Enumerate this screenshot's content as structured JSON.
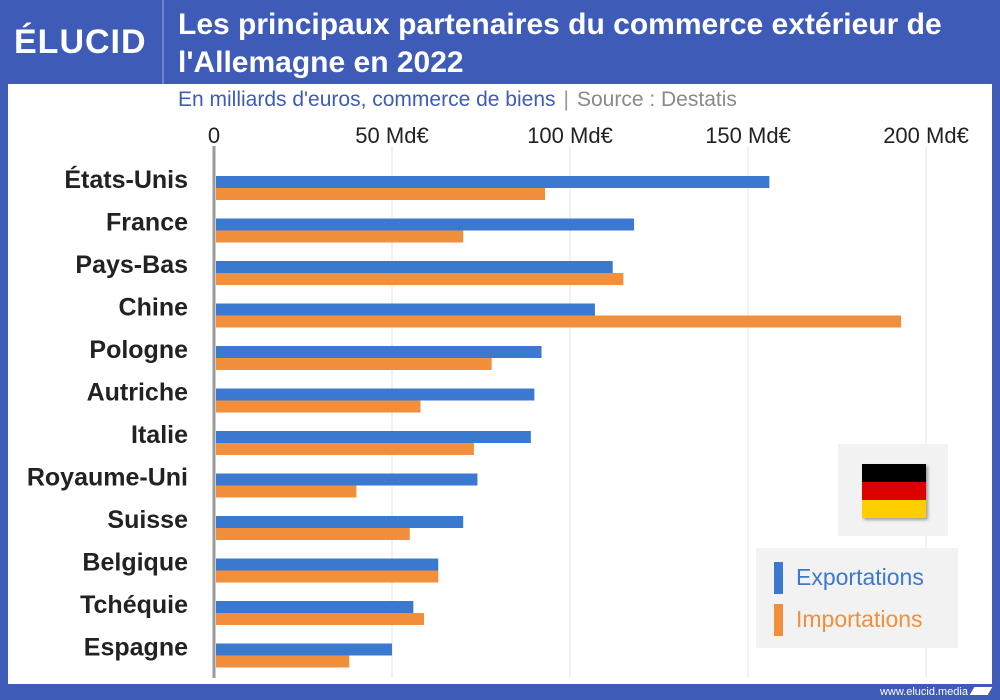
{
  "brand": {
    "logo_text": "ÉLUCID",
    "footer_url": "www.elucid.media"
  },
  "colors": {
    "frame": "#3f5bb8",
    "exports": "#3b79d0",
    "imports": "#f18f3b",
    "axis": "#9a9a9a",
    "grid": "#e3e3e3"
  },
  "flag": {
    "icon": "germany-flag-icon",
    "colors": [
      "#000000",
      "#dd0000",
      "#ffce00"
    ]
  },
  "chart_data": {
    "type": "bar",
    "orientation": "horizontal",
    "title": "Les principaux partenaires du commerce extérieur de l'Allemagne en 2022",
    "subtitle": "En milliards d'euros, commerce de biens",
    "source": "Source : Destatis",
    "categories": [
      "États-Unis",
      "France",
      "Pays-Bas",
      "Chine",
      "Pologne",
      "Autriche",
      "Italie",
      "Royaume-Uni",
      "Suisse",
      "Belgique",
      "Tchéquie",
      "Espagne"
    ],
    "series": [
      {
        "name": "Exportations",
        "values": [
          156,
          118,
          112,
          107,
          92,
          90,
          89,
          74,
          70,
          63,
          56,
          50
        ]
      },
      {
        "name": "Importations",
        "values": [
          93,
          70,
          115,
          193,
          78,
          58,
          73,
          40,
          55,
          63,
          59,
          38
        ]
      }
    ],
    "xlim": [
      0,
      200
    ],
    "xticks": [
      0,
      50,
      100,
      150,
      200
    ],
    "xtick_labels": [
      "0",
      "50 Md€",
      "100 Md€",
      "150 Md€",
      "200 Md€"
    ],
    "grid": true,
    "legend_position": "bottom-right"
  }
}
